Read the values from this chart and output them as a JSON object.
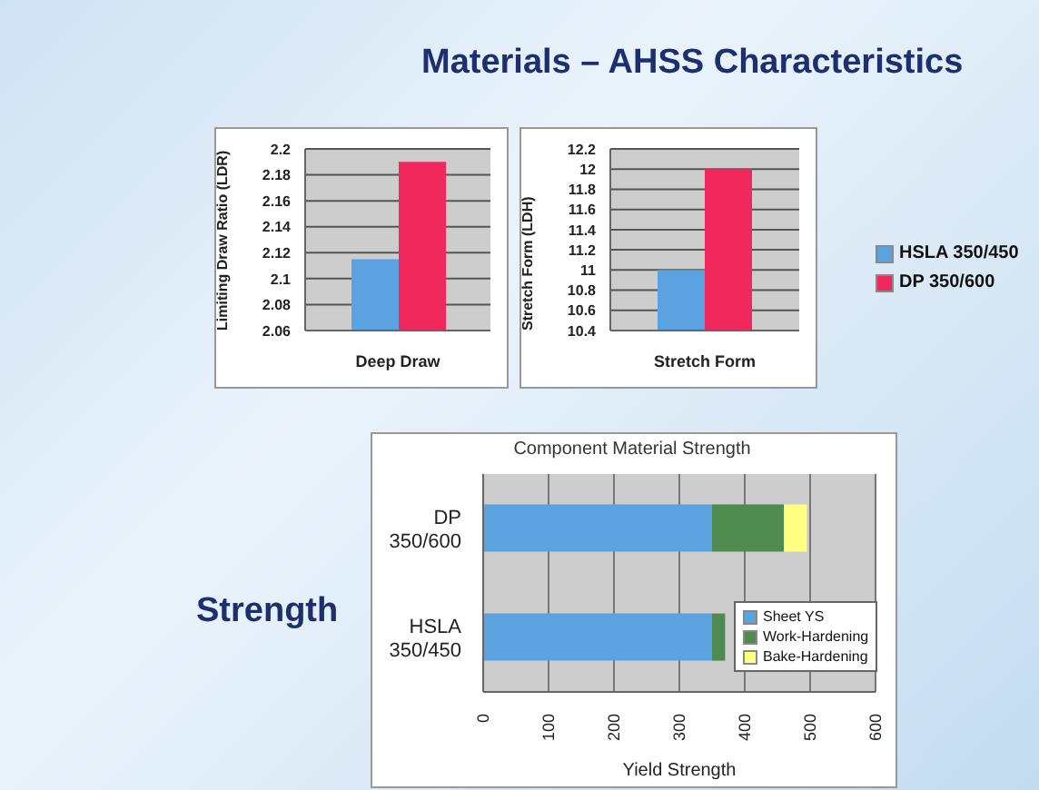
{
  "chart_data": [
    {
      "type": "other",
      "title": "Materials – AHSS Characteristics",
      "annotations": [
        "Strength"
      ]
    },
    {
      "type": "bar",
      "ylabel": "Limiting Draw Ratio (LDR)",
      "categories": [
        "Deep Draw"
      ],
      "series": [
        {
          "color": "#5ba3e0",
          "values": [
            2.115
          ]
        },
        {
          "color": "#f0285c",
          "values": [
            2.19
          ]
        }
      ],
      "ylim": [
        2.06,
        2.2
      ],
      "yticks": [
        2.06,
        2.08,
        2.1,
        2.12,
        2.14,
        2.16,
        2.18,
        2.2
      ],
      "grid": "y"
    },
    {
      "type": "bar",
      "ylabel": "Stretch Form (LDH)",
      "categories": [
        "Stretch Form"
      ],
      "series": [
        {
          "name": "HSLA 350/450",
          "color": "#5ba3e0",
          "values": [
            11.0
          ]
        },
        {
          "name": "DP 350/600",
          "color": "#f0285c",
          "values": [
            12.0
          ]
        }
      ],
      "ylim": [
        10.4,
        12.2
      ],
      "yticks": [
        10.4,
        10.6,
        10.8,
        11,
        11.2,
        11.4,
        11.6,
        11.8,
        12,
        12.2
      ],
      "grid": "y",
      "legend": "right"
    },
    {
      "type": "bar",
      "orientation": "horizontal",
      "stacked": true,
      "title": "Component Material Strength",
      "xlabel": "Yield Strength",
      "categories": [
        "DP 350/600",
        "HSLA 350/450"
      ],
      "series": [
        {
          "name": "Sheet YS",
          "color": "#5ba3e0",
          "values": [
            350,
            350
          ]
        },
        {
          "name": "Work-Hardening",
          "color": "#4f8a4f",
          "values": [
            110,
            20
          ]
        },
        {
          "name": "Bake-Hardening",
          "color": "#ffff80",
          "values": [
            35,
            null
          ]
        }
      ],
      "xlim": [
        0,
        600
      ],
      "xticks": [
        0,
        100,
        200,
        300,
        400,
        500,
        600
      ],
      "grid": "x",
      "legend": "right"
    }
  ]
}
